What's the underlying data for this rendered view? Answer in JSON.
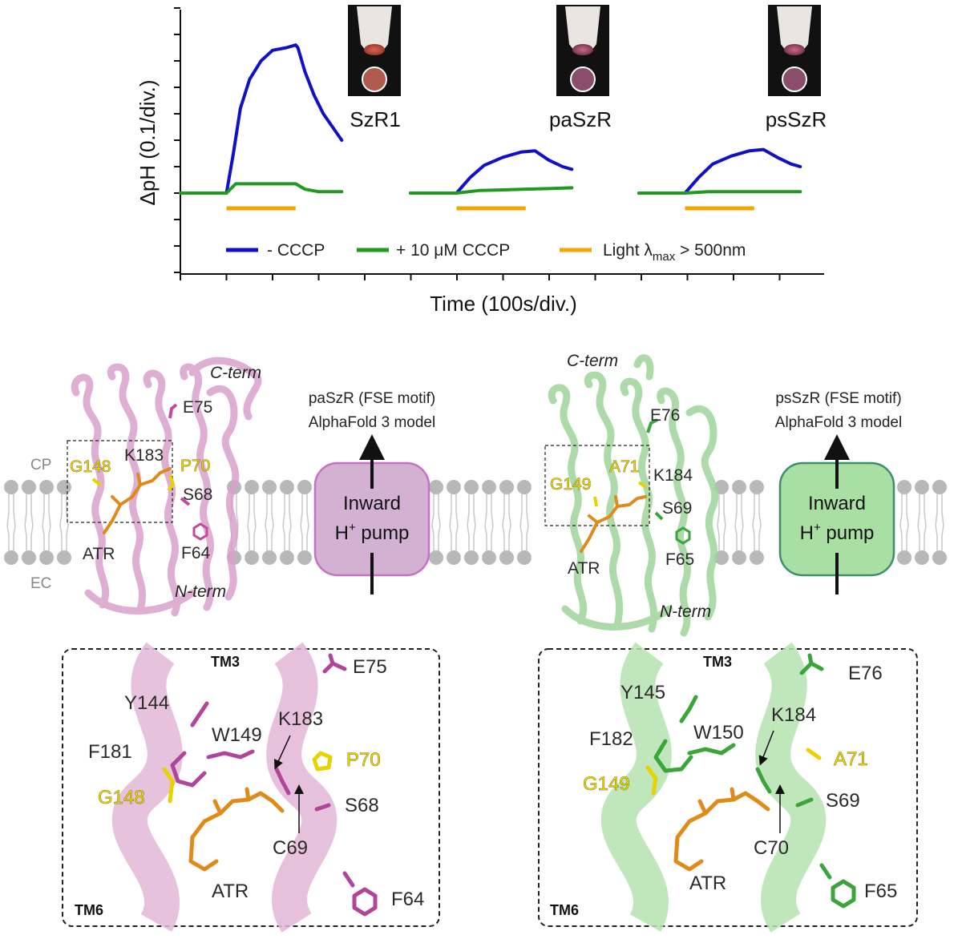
{
  "colors": {
    "no_cccp": "#1010c8",
    "with_cccp": "#1f9a1f",
    "light": "#f5a400",
    "pa_protein": "#d9a0cc",
    "ps_protein": "#9ed49a",
    "pa_box_fill": "#d3b1d2",
    "pa_box_stroke": "#c870c4",
    "ps_box_fill": "#a9dfa2",
    "ps_box_stroke": "#3b8f6b",
    "retinal": "#e08a1a",
    "membrane": "#b8b8b8"
  },
  "chart": {
    "y_label": "ΔpH (0.1/div.)",
    "x_label": "Time (100s/div.)",
    "samples": [
      "SzR1",
      "paSzR",
      "psSzR"
    ],
    "legend": {
      "no_cccp": "- CCCP",
      "with_cccp": "+ 10 μM CCCP",
      "light_prefix": "Light λ",
      "light_sub": "max",
      "light_suffix": " > 500nm"
    }
  },
  "chart_data": {
    "type": "line",
    "title": "",
    "ylabel": "ΔpH (0.1/div.)",
    "xlabel": "Time (100s/div.)",
    "units": {
      "x": "div (100 s)",
      "y": "div (0.1 pH)"
    },
    "panels": [
      {
        "name": "SzR1",
        "light_on": [
          1,
          2.5
        ],
        "series": [
          {
            "name": "- CCCP",
            "x": [
              0,
              1.0,
              1.15,
              1.3,
              1.5,
              1.75,
              2.0,
              2.3,
              2.5,
              2.55,
              2.7,
              2.9,
              3.1,
              3.3,
              3.5
            ],
            "y": [
              0,
              0,
              1.5,
              3.2,
              4.3,
              5.0,
              5.4,
              5.5,
              5.6,
              5.5,
              4.6,
              3.7,
              3.0,
              2.5,
              2.0
            ]
          },
          {
            "name": "+ 10 μM CCCP",
            "x": [
              0,
              1.0,
              1.2,
              1.5,
              2.0,
              2.5,
              2.7,
              3.0,
              3.5
            ],
            "y": [
              0,
              0,
              0.35,
              0.35,
              0.35,
              0.35,
              0.15,
              0.05,
              0.05
            ]
          }
        ]
      },
      {
        "name": "paSzR",
        "light_on": [
          1,
          2.5
        ],
        "series": [
          {
            "name": "- CCCP",
            "x": [
              0,
              1.0,
              1.3,
              1.6,
              2.0,
              2.4,
              2.7,
              3.0,
              3.3,
              3.5
            ],
            "y": [
              0,
              0,
              0.6,
              1.05,
              1.35,
              1.55,
              1.6,
              1.25,
              1.0,
              0.9
            ]
          },
          {
            "name": "+ 10 μM CCCP",
            "x": [
              0,
              1.0,
              1.5,
              2.0,
              2.5,
              3.0,
              3.5
            ],
            "y": [
              0,
              0,
              0.1,
              0.12,
              0.15,
              0.17,
              0.2
            ]
          }
        ]
      },
      {
        "name": "psSzR",
        "light_on": [
          1,
          2.5
        ],
        "series": [
          {
            "name": "- CCCP",
            "x": [
              0,
              1.0,
              1.3,
              1.6,
              2.0,
              2.4,
              2.7,
              3.0,
              3.3,
              3.5
            ],
            "y": [
              0,
              0,
              0.6,
              1.1,
              1.4,
              1.6,
              1.65,
              1.35,
              1.1,
              1.0
            ]
          },
          {
            "name": "+ 10 μM CCCP",
            "x": [
              0,
              1.0,
              1.5,
              2.0,
              2.5,
              3.0,
              3.5
            ],
            "y": [
              0,
              0,
              0.05,
              0.05,
              0.05,
              0.05,
              0.05
            ]
          }
        ]
      }
    ],
    "legend": [
      "- CCCP",
      "+ 10 μM CCCP",
      "Light λmax > 500nm"
    ],
    "grid": false
  },
  "structures": {
    "pa": {
      "caption_line1": "paSzR (FSE motif)",
      "caption_line2": "AlphaFold 3 model",
      "pump_line1": "Inward",
      "pump_line2_pre": "H",
      "pump_line2_sup": "+",
      "pump_line2_post": " pump",
      "c_term": "C-term",
      "n_term": "N-term",
      "cp": "CP",
      "ec": "EC",
      "overview_labels": [
        "G148",
        "K183",
        "P70",
        "E75",
        "S68",
        "ATR",
        "F64"
      ],
      "closeup_labels": [
        "TM3",
        "TM6",
        "E75",
        "Y144",
        "K183",
        "W149",
        "F181",
        "P70",
        "G148",
        "S68",
        "C69",
        "ATR",
        "F64"
      ]
    },
    "ps": {
      "caption_line1": "psSzR (FSE motif)",
      "caption_line2": "AlphaFold 3 model",
      "pump_line1": "Inward",
      "pump_line2_pre": "H",
      "pump_line2_sup": "+",
      "pump_line2_post": " pump",
      "c_term": "C-term",
      "n_term": "N-term",
      "overview_labels": [
        "E76",
        "A71",
        "G149",
        "K184",
        "S69",
        "ATR",
        "F65"
      ],
      "closeup_labels": [
        "TM3",
        "TM6",
        "E76",
        "Y145",
        "K184",
        "F182",
        "W150",
        "A71",
        "G149",
        "S69",
        "C70",
        "ATR",
        "F65"
      ]
    }
  }
}
